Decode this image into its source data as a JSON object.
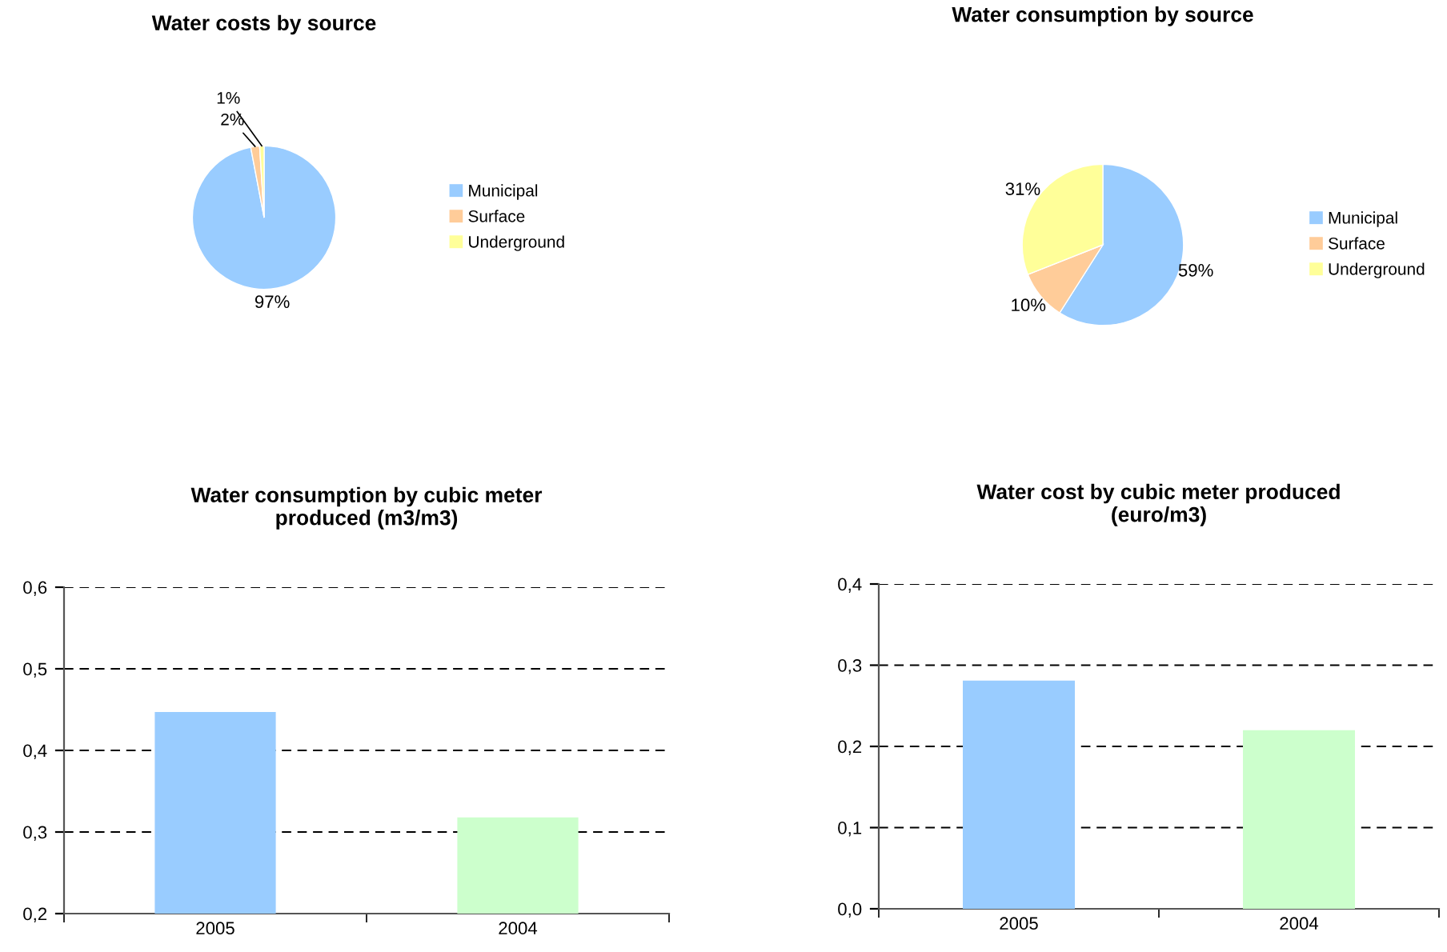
{
  "chart_data": [
    {
      "type": "pie",
      "title": "Water costs by source",
      "categories": [
        "Municipal",
        "Surface",
        "Underground"
      ],
      "values": [
        97,
        2,
        1
      ],
      "colors": [
        "#99ccff",
        "#ffcc99",
        "#ffff99"
      ],
      "value_labels": [
        "97%",
        "2%",
        "1%"
      ],
      "legend": "right"
    },
    {
      "type": "pie",
      "title": "Water consumption by source",
      "categories": [
        "Municipal",
        "Surface",
        "Underground"
      ],
      "values": [
        59,
        10,
        31
      ],
      "colors": [
        "#99ccff",
        "#ffcc99",
        "#ffff99"
      ],
      "value_labels": [
        "59%",
        "10%",
        "31%"
      ],
      "legend": "right"
    },
    {
      "type": "bar",
      "title": "Water consumption by cubic meter\nproduced (m3/m3)",
      "categories": [
        "2005",
        "2004"
      ],
      "values": [
        0.447,
        0.318
      ],
      "colors": [
        "#99ccff",
        "#ccffcc"
      ],
      "ylim": [
        0.2,
        0.6
      ],
      "yticks": [
        {
          "value": 0.2,
          "label": "0,2"
        },
        {
          "value": 0.3,
          "label": "0,3"
        },
        {
          "value": 0.4,
          "label": "0,4"
        },
        {
          "value": 0.5,
          "label": "0,5"
        },
        {
          "value": 0.6,
          "label": "0,6"
        }
      ],
      "grid": "y"
    },
    {
      "type": "bar",
      "title": "Water cost by cubic meter produced\n(euro/m3)",
      "categories": [
        "2005",
        "2004"
      ],
      "values": [
        0.281,
        0.22
      ],
      "colors": [
        "#99ccff",
        "#ccffcc"
      ],
      "ylim": [
        0.0,
        0.4
      ],
      "yticks": [
        {
          "value": 0.0,
          "label": "0,0"
        },
        {
          "value": 0.1,
          "label": "0,1"
        },
        {
          "value": 0.2,
          "label": "0,2"
        },
        {
          "value": 0.3,
          "label": "0,3"
        },
        {
          "value": 0.4,
          "label": "0,4"
        }
      ],
      "grid": "y"
    }
  ]
}
